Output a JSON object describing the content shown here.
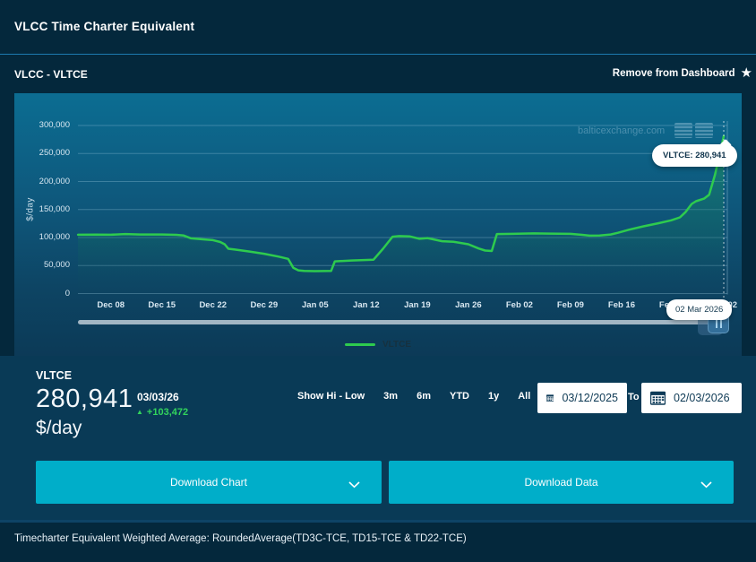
{
  "header": {
    "title": "VLCC Time Charter Equivalent"
  },
  "subheader": {
    "title": "VLCC - VLTCE",
    "action": "Remove from Dashboard"
  },
  "icons": {
    "favorite": "★",
    "change_up": "▲"
  },
  "chart": {
    "watermark": "balticexchange.com",
    "y_axis_title": "$/day",
    "tooltip": {
      "label": "VLTCE: 280,941",
      "date_label": "02 Mar 2026"
    },
    "legend": [
      {
        "label": "VLTCE",
        "color": "#2ecb4e"
      }
    ]
  },
  "chart_data": {
    "type": "line",
    "title": "VLCC Time Charter Equivalent",
    "ylabel": "$/day",
    "ylim": [
      0,
      300000
    ],
    "y_ticks": [
      0,
      50000,
      100000,
      150000,
      200000,
      250000,
      300000
    ],
    "x_domain": [
      0,
      89
    ],
    "x_ticks": [
      {
        "day": 5,
        "label": "Dec 08"
      },
      {
        "day": 12,
        "label": "Dec 15"
      },
      {
        "day": 19,
        "label": "Dec 22"
      },
      {
        "day": 26,
        "label": "Dec 29"
      },
      {
        "day": 33,
        "label": "Jan 05"
      },
      {
        "day": 40,
        "label": "Jan 12"
      },
      {
        "day": 47,
        "label": "Jan 19"
      },
      {
        "day": 54,
        "label": "Jan 26"
      },
      {
        "day": 61,
        "label": "Feb 02"
      },
      {
        "day": 68,
        "label": "Feb 09"
      },
      {
        "day": 75,
        "label": "Feb 16"
      },
      {
        "day": 82,
        "label": "Feb 23"
      },
      {
        "day": 89,
        "label": "Mar 02"
      }
    ],
    "crosshair_day": 89,
    "last_point": {
      "date": "02 Mar 2026",
      "value": 280941
    },
    "series": [
      {
        "name": "VLTCE",
        "color": "#2ecb4e",
        "points": [
          [
            0.5,
            105000
          ],
          [
            3,
            105300
          ],
          [
            5,
            105000
          ],
          [
            7,
            106300
          ],
          [
            9,
            105400
          ],
          [
            12,
            105400
          ],
          [
            14,
            104800
          ],
          [
            15,
            103500
          ],
          [
            16,
            98500
          ],
          [
            18,
            96500
          ],
          [
            19,
            95300
          ],
          [
            20,
            92000
          ],
          [
            20.6,
            88000
          ],
          [
            21.1,
            80000
          ],
          [
            22,
            78500
          ],
          [
            24,
            75000
          ],
          [
            26,
            71000
          ],
          [
            28,
            66000
          ],
          [
            29.3,
            62000
          ],
          [
            30,
            46000
          ],
          [
            30.7,
            41500
          ],
          [
            31.5,
            40300
          ],
          [
            33,
            40000
          ],
          [
            35.2,
            40500
          ],
          [
            35.7,
            57500
          ],
          [
            38,
            59000
          ],
          [
            41,
            60500
          ],
          [
            42.3,
            80000
          ],
          [
            43.6,
            101500
          ],
          [
            44.5,
            102500
          ],
          [
            46,
            102000
          ],
          [
            47.3,
            97800
          ],
          [
            48.4,
            99000
          ],
          [
            50.4,
            93500
          ],
          [
            52,
            92400
          ],
          [
            54,
            88000
          ],
          [
            55.4,
            80500
          ],
          [
            56.3,
            76800
          ],
          [
            57.2,
            76000
          ],
          [
            57.9,
            106300
          ],
          [
            60,
            106600
          ],
          [
            63,
            107400
          ],
          [
            65,
            107100
          ],
          [
            68,
            106600
          ],
          [
            69.6,
            104800
          ],
          [
            70.6,
            103300
          ],
          [
            72,
            103600
          ],
          [
            73.5,
            105500
          ],
          [
            74.5,
            108500
          ],
          [
            76,
            114000
          ],
          [
            78,
            120000
          ],
          [
            80,
            125500
          ],
          [
            81.8,
            130800
          ],
          [
            83,
            136000
          ],
          [
            83.8,
            146000
          ],
          [
            84.6,
            160000
          ],
          [
            85.2,
            164800
          ],
          [
            86.3,
            169500
          ],
          [
            87,
            176500
          ],
          [
            87.8,
            212000
          ],
          [
            88.5,
            252000
          ],
          [
            89,
            280941
          ]
        ]
      }
    ]
  },
  "stats": {
    "label": "VLTCE",
    "value": "280,941",
    "unit": "$/day",
    "date": "03/03/26",
    "change": "+103,472",
    "change_dir": "up"
  },
  "controls": {
    "hi_low_label": "Show Hi - Low",
    "ranges": [
      "3m",
      "6m",
      "YTD",
      "1y",
      "All"
    ],
    "date_from": "03/12/2025",
    "to_label": "To",
    "date_to": "02/03/2026"
  },
  "downloads": {
    "chart_label": "Download Chart",
    "data_label": "Download Data"
  },
  "footer": {
    "note": "Timecharter Equivalent Weighted Average: RoundedAverage(TD3C-TCE, TD15-TCE & TD22-TCE)"
  },
  "colors": {
    "accent_teal": "#00aec9",
    "line_green": "#2ecb4e",
    "change_green": "#32d45c",
    "panel_navy": "#093a56",
    "page_navy": "#04283c",
    "chart_top": "#0c6d92",
    "chart_bottom": "#0c3a57"
  }
}
